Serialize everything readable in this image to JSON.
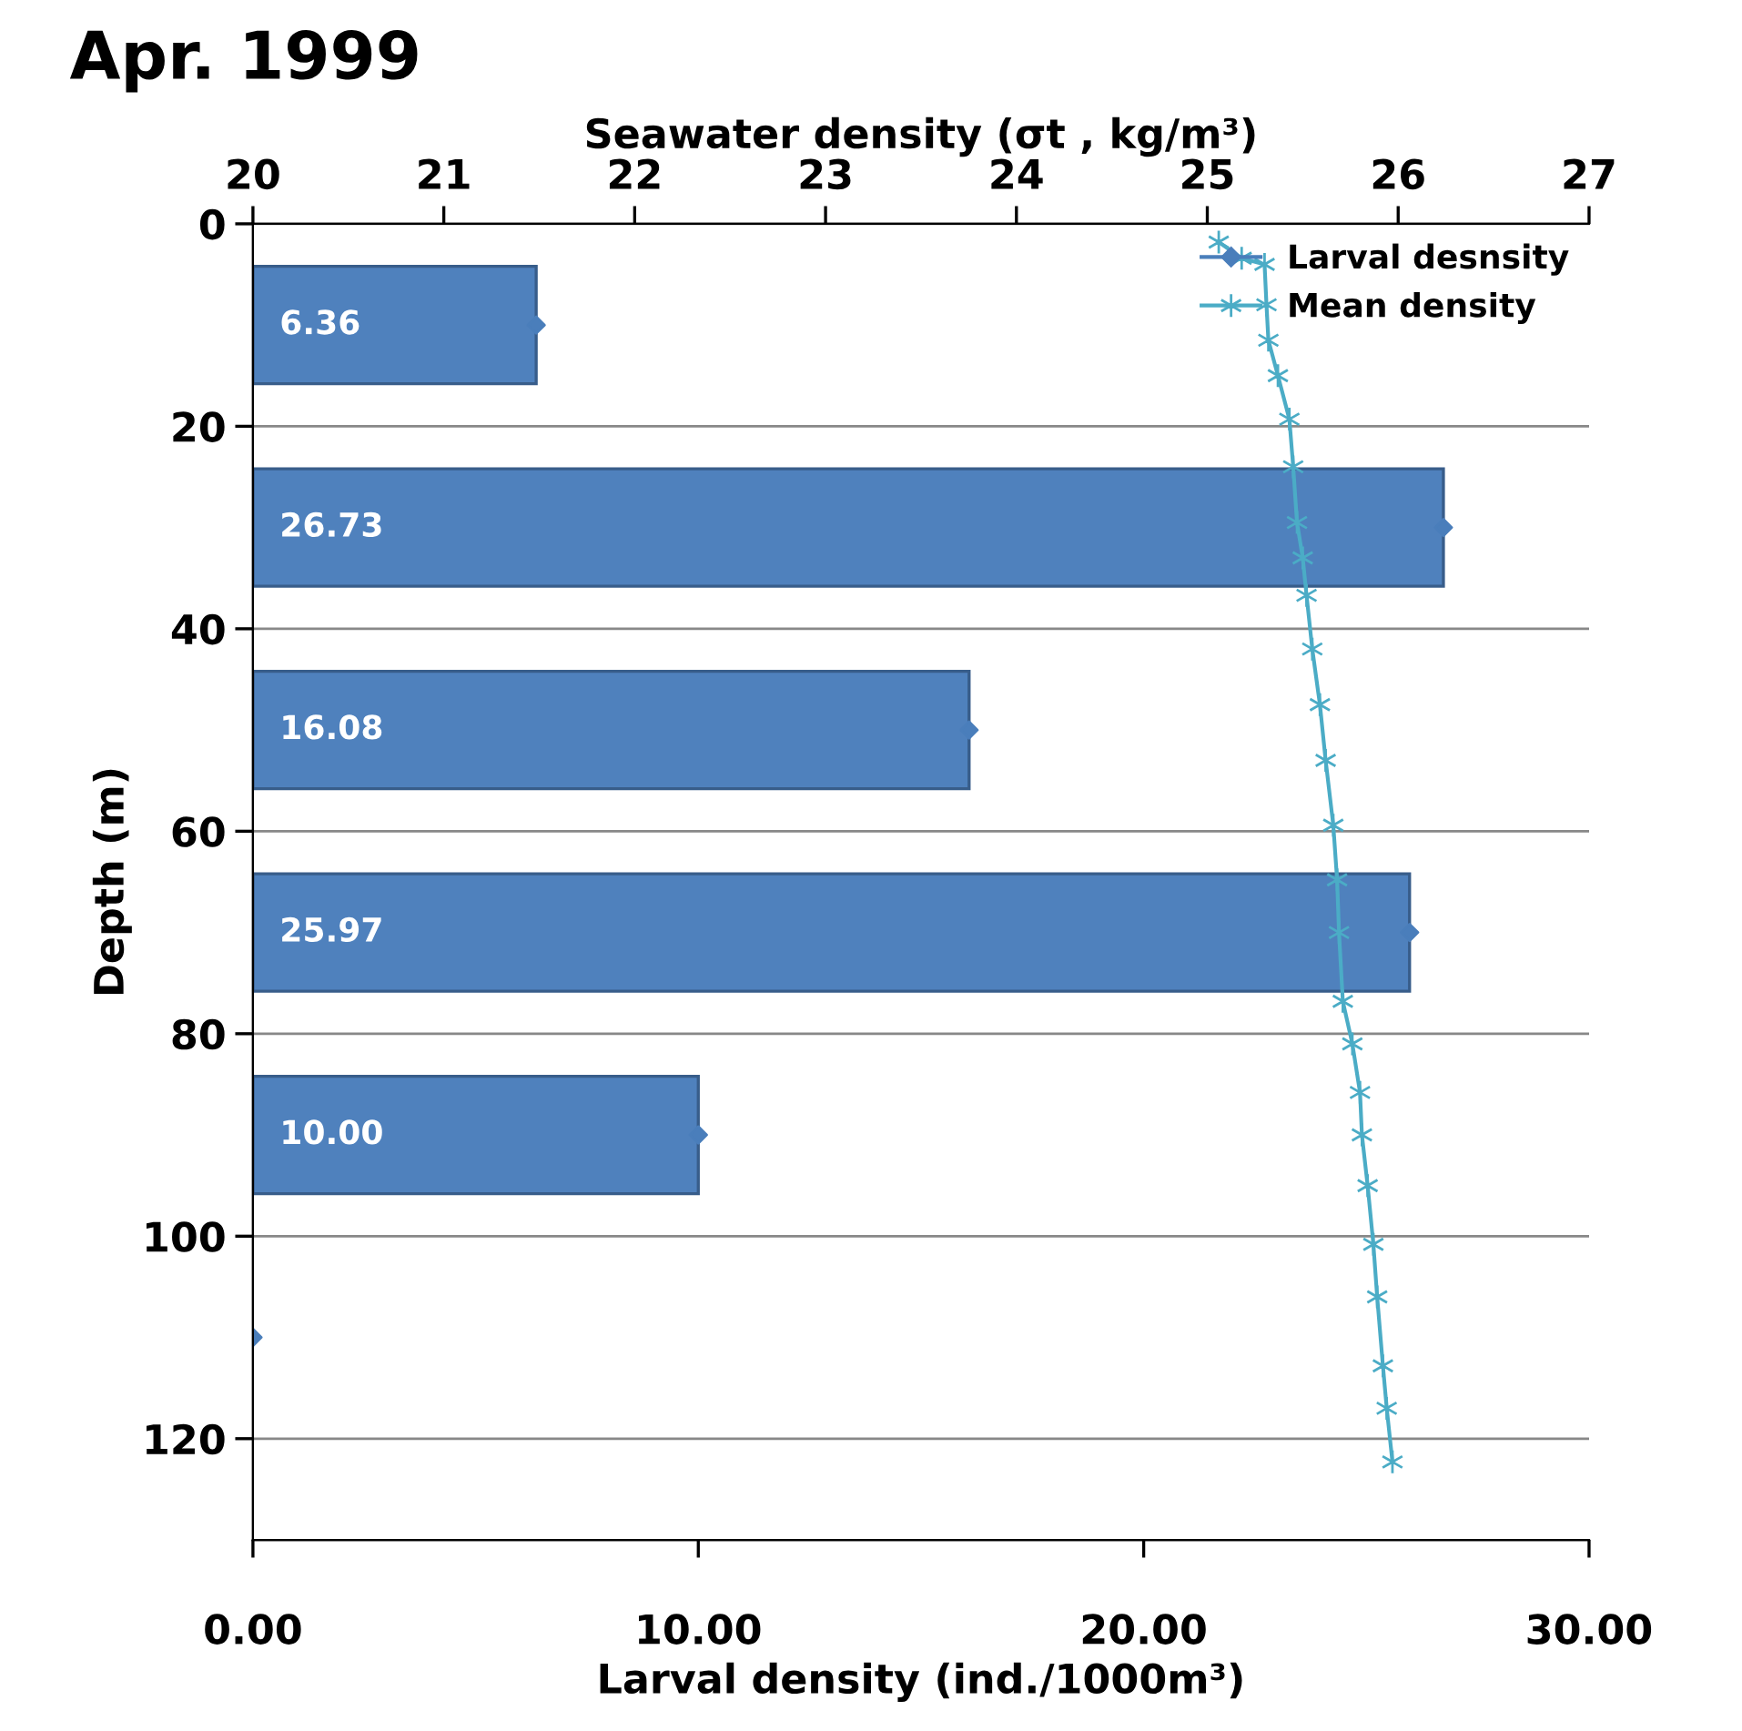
{
  "chart_data": {
    "type": "bar",
    "orientation": "horizontal",
    "title": "Apr. 1999",
    "xlabel": "Larval density (ind./1000m³)",
    "ylabel": "Depth (m)",
    "x2label": "Seawater density (σt , kg/m³)",
    "xlim": [
      0,
      30
    ],
    "xticks": [
      {
        "value": 0,
        "label": "0.00"
      },
      {
        "value": 10,
        "label": "10.00"
      },
      {
        "value": 20,
        "label": "20.00"
      },
      {
        "value": 30,
        "label": "30.00"
      }
    ],
    "x2lim": [
      20,
      27
    ],
    "x2ticks": [
      20,
      21,
      22,
      23,
      24,
      25,
      26,
      27
    ],
    "ylim": [
      130,
      0
    ],
    "yticks": [
      0,
      20,
      40,
      60,
      80,
      100,
      120
    ],
    "grid": "y",
    "legend": "top right",
    "series": [
      {
        "color": "#4f81bd",
        "x": [
          10,
          30,
          50,
          70,
          90,
          110
        ],
        "values": [
          6.36,
          26.73,
          16.08,
          25.97,
          10.0,
          0
        ],
        "value_labels": [
          "6.36",
          "26.73",
          "16.08",
          "25.97",
          "10.00",
          null
        ]
      },
      {
        "type": "scatter",
        "name": "Larval desnsity",
        "color": "#4a7ebb",
        "marker": "diamond",
        "x": [
          10,
          30,
          50,
          70,
          90,
          110
        ],
        "values": [
          6.36,
          26.73,
          16.08,
          25.97,
          10.0,
          0
        ]
      },
      {
        "type": "line",
        "name": "Mean density",
        "color": "#4bacc6",
        "marker": "cross",
        "axis": "x2",
        "x": [
          1.8,
          3.4,
          4,
          8,
          11.5,
          15,
          19.3,
          24,
          29.5,
          33,
          36.7,
          42,
          47.5,
          53,
          59.4,
          64.8,
          70,
          76.8,
          81,
          85.8,
          90,
          95,
          100.8,
          106,
          112.8,
          117,
          122.3
        ],
        "values": [
          25.06,
          25.18,
          25.3,
          25.31,
          25.32,
          25.37,
          25.43,
          25.45,
          25.47,
          25.5,
          25.52,
          25.55,
          25.59,
          25.62,
          25.66,
          25.68,
          25.69,
          25.71,
          25.76,
          25.8,
          25.81,
          25.84,
          25.87,
          25.89,
          25.92,
          25.94,
          25.97
        ]
      }
    ]
  }
}
